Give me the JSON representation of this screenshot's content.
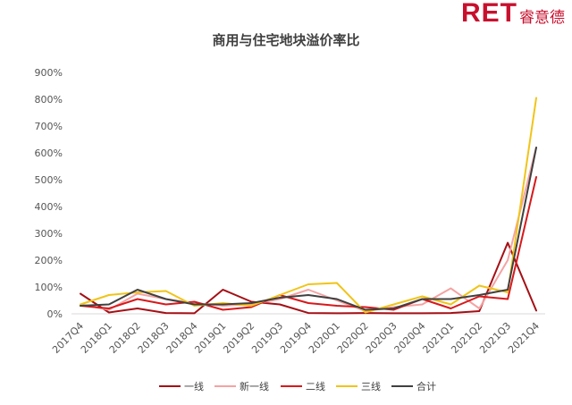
{
  "brand": {
    "logo_text": "RET",
    "name": "睿意德"
  },
  "chart_data": {
    "type": "line",
    "title": "商用与住宅地块溢价率比",
    "xlabel": "",
    "ylabel": "",
    "ylim": [
      0,
      900
    ],
    "y_ticks": [
      "0%",
      "100%",
      "200%",
      "300%",
      "400%",
      "500%",
      "600%",
      "700%",
      "800%",
      "900%"
    ],
    "grid": false,
    "legend_position": "bottom",
    "categories": [
      "2017Q4",
      "2018Q1",
      "2018Q2",
      "2018Q3",
      "2018Q4",
      "2019Q1",
      "2019Q2",
      "2019Q3",
      "2019Q4",
      "2020Q1",
      "2020Q2",
      "2020Q3",
      "2020Q4",
      "2021Q1",
      "2021Q2",
      "2021Q3",
      "2021Q4"
    ],
    "series": [
      {
        "name": "一线",
        "color": "#a50f15",
        "values": [
          75,
          5,
          20,
          3,
          2,
          90,
          45,
          35,
          3,
          2,
          3,
          2,
          2,
          3,
          10,
          265,
          12
        ]
      },
      {
        "name": "新一线",
        "color": "#f4a3a3",
        "values": [
          35,
          15,
          75,
          55,
          40,
          30,
          35,
          55,
          90,
          50,
          10,
          25,
          35,
          95,
          20,
          200,
          620
        ]
      },
      {
        "name": "二线",
        "color": "#d7191c",
        "values": [
          30,
          20,
          55,
          35,
          45,
          15,
          25,
          70,
          40,
          30,
          25,
          15,
          55,
          20,
          65,
          55,
          510
        ]
      },
      {
        "name": "三线",
        "color": "#f0c419",
        "values": [
          35,
          70,
          80,
          85,
          30,
          40,
          30,
          70,
          110,
          115,
          5,
          35,
          65,
          35,
          105,
          80,
          805
        ]
      },
      {
        "name": "合计",
        "color": "#404040",
        "values": [
          30,
          35,
          90,
          55,
          35,
          35,
          40,
          60,
          70,
          55,
          15,
          20,
          55,
          55,
          70,
          90,
          620
        ]
      }
    ]
  }
}
